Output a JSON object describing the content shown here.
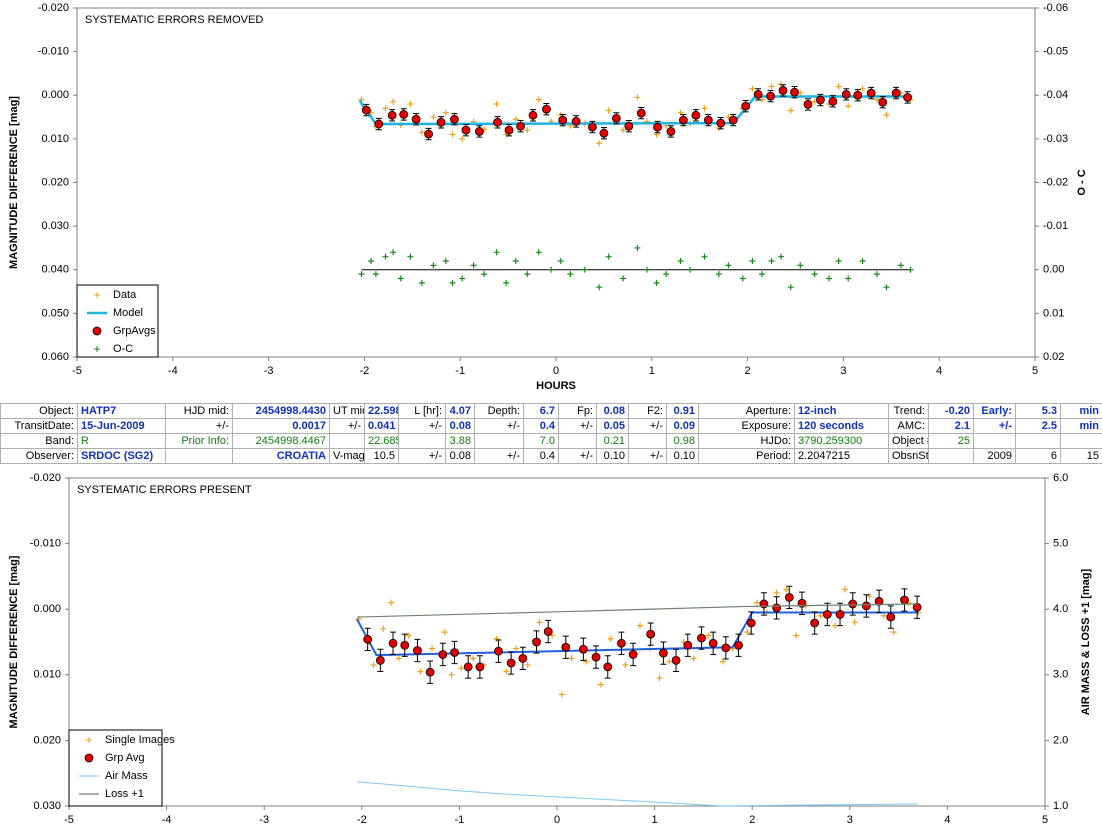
{
  "chart_data": [
    {
      "type": "line",
      "title": "SYSTEMATIC ERRORS REMOVED",
      "x_label": "HOURS",
      "y_label": "MAGNITUDE DIFFERENCE [mag]",
      "y2_label": "O - C",
      "xlim": [
        -5,
        5
      ],
      "xticks": [
        -5,
        -4,
        -3,
        -2,
        -1,
        0,
        1,
        2,
        3,
        4,
        5
      ],
      "ylim": [
        -0.02,
        0.06
      ],
      "y_inverted": true,
      "yticks": [
        {
          "value": -0.02,
          "label": "-0.020"
        },
        {
          "value": -0.01,
          "label": "-0.010"
        },
        {
          "value": 0,
          "label": "0.000"
        },
        {
          "value": 0.01,
          "label": "0.010"
        },
        {
          "value": 0.02,
          "label": "0.020"
        },
        {
          "value": 0.03,
          "label": "0.030"
        },
        {
          "value": 0.04,
          "label": "0.040"
        },
        {
          "value": 0.05,
          "label": "0.050"
        },
        {
          "value": 0.06,
          "label": "0.060"
        }
      ],
      "y2lim": [
        -0.06,
        0.02
      ],
      "y2_inverted": true,
      "y2ticks": [
        {
          "value": -0.06,
          "label": "-0.06"
        },
        {
          "value": -0.05,
          "label": "-0.05"
        },
        {
          "value": -0.04,
          "label": "-0.04"
        },
        {
          "value": -0.03,
          "label": "-0.03"
        },
        {
          "value": -0.02,
          "label": "-0.02"
        },
        {
          "value": -0.01,
          "label": "-0.01"
        },
        {
          "value": 0,
          "label": "0.00"
        },
        {
          "value": 0.01,
          "label": "0.01"
        },
        {
          "value": 0.02,
          "label": "0.02"
        }
      ],
      "legend": "lower left",
      "series": [
        {
          "name": "Data",
          "color": "#f0a020",
          "marker": "plus",
          "x": [
            -2.03,
            -1.93,
            -1.88,
            -1.78,
            -1.7,
            -1.62,
            -1.52,
            -1.4,
            -1.28,
            -1.15,
            -1.08,
            -0.98,
            -0.86,
            -0.75,
            -0.62,
            -0.52,
            -0.42,
            -0.3,
            -0.18,
            -0.05,
            0.05,
            0.15,
            0.3,
            0.45,
            0.55,
            0.7,
            0.85,
            0.95,
            1.05,
            1.15,
            1.3,
            1.4,
            1.55,
            1.7,
            1.8,
            1.95,
            2.05,
            2.15,
            2.25,
            2.35,
            2.45,
            2.55,
            2.7,
            2.85,
            2.95,
            3.05,
            3.2,
            3.35,
            3.45,
            3.6,
            3.7
          ],
          "values": [
            0.001,
            0.004,
            0.0072,
            0.003,
            0.0015,
            0.0068,
            0.002,
            0.0085,
            0.005,
            0.004,
            0.009,
            0.01,
            0.006,
            0.0078,
            0.002,
            0.009,
            0.0055,
            0.008,
            0.001,
            0.006,
            0.0045,
            0.007,
            0.0065,
            0.011,
            0.0035,
            0.008,
            0.0005,
            0.006,
            0.009,
            0.007,
            0.004,
            0.0065,
            0.003,
            0.0075,
            0.005,
            0.003,
            -0.0015,
            0.001,
            -0.002,
            -0.0025,
            0.0035,
            -0.0005,
            0.0015,
            0.002,
            -0.002,
            0.0025,
            -0.0015,
            0.001,
            0.0045,
            -0.0005,
            0.001
          ]
        },
        {
          "name": "Model",
          "color": "#1fb4e0",
          "marker": "line",
          "width": 2.5,
          "x": [
            -2.05,
            -1.88,
            1.85,
            2.08,
            3.72
          ],
          "values": [
            0.0012,
            0.0066,
            0.0064,
            0.0003,
            0.0003
          ]
        },
        {
          "name": "GrpAvgs",
          "color": "#e00000",
          "marker": "circle",
          "error": 0.0013,
          "x": [
            -1.98,
            -1.85,
            -1.71,
            -1.59,
            -1.46,
            -1.33,
            -1.2,
            -1.06,
            -0.94,
            -0.8,
            -0.61,
            -0.49,
            -0.37,
            -0.24,
            -0.1,
            0.07,
            0.21,
            0.38,
            0.5,
            0.63,
            0.76,
            0.89,
            1.06,
            1.2,
            1.33,
            1.46,
            1.59,
            1.72,
            1.85,
            1.98,
            2.11,
            2.24,
            2.37,
            2.49,
            2.63,
            2.76,
            2.89,
            3.03,
            3.15,
            3.29,
            3.41,
            3.55,
            3.67
          ],
          "values": [
            0.0034,
            0.0066,
            0.0046,
            0.0044,
            0.0055,
            0.0089,
            0.0062,
            0.0055,
            0.008,
            0.0083,
            0.0062,
            0.008,
            0.0071,
            0.0046,
            0.0032,
            0.0057,
            0.006,
            0.0073,
            0.0087,
            0.0053,
            0.0071,
            0.0041,
            0.0073,
            0.0083,
            0.0057,
            0.0046,
            0.0057,
            0.0064,
            0.0057,
            0.0025,
            -0.0002,
            0.0002,
            -0.0011,
            -0.0007,
            0.0021,
            0.0011,
            0.0014,
            -0.0002,
            0.0,
            -0.0005,
            0.0016,
            -0.0005,
            0.0005
          ]
        },
        {
          "name": "O-C",
          "color": "#1a8a1a",
          "marker": "plus",
          "axis": "y2",
          "zero_line": true,
          "x": [
            -2.03,
            -1.93,
            -1.88,
            -1.78,
            -1.7,
            -1.62,
            -1.52,
            -1.4,
            -1.28,
            -1.15,
            -1.08,
            -0.98,
            -0.86,
            -0.75,
            -0.62,
            -0.52,
            -0.42,
            -0.3,
            -0.18,
            -0.05,
            0.05,
            0.15,
            0.3,
            0.45,
            0.55,
            0.7,
            0.85,
            0.95,
            1.05,
            1.15,
            1.3,
            1.4,
            1.55,
            1.7,
            1.8,
            1.95,
            2.05,
            2.15,
            2.25,
            2.35,
            2.45,
            2.55,
            2.7,
            2.85,
            2.95,
            3.05,
            3.2,
            3.35,
            3.45,
            3.6,
            3.7
          ],
          "values": [
            0.001,
            -0.002,
            0.001,
            -0.003,
            -0.004,
            0.002,
            -0.003,
            0.003,
            -0.001,
            -0.002,
            0.003,
            0.002,
            -0.001,
            0.001,
            -0.004,
            0.003,
            -0.002,
            0.001,
            -0.004,
            0.0,
            -0.002,
            0.001,
            0.0,
            0.004,
            -0.003,
            0.002,
            -0.005,
            0.0,
            0.003,
            0.001,
            -0.002,
            0.0,
            -0.003,
            0.001,
            -0.001,
            0.002,
            -0.002,
            0.001,
            -0.002,
            -0.003,
            0.004,
            -0.001,
            0.001,
            0.002,
            -0.002,
            0.002,
            -0.002,
            0.001,
            0.004,
            -0.001,
            0.0
          ]
        }
      ]
    },
    {
      "type": "line",
      "title": "SYSTEMATIC ERRORS PRESENT",
      "y_label": "MAGNITUDE DIFFERENCE [mag]",
      "y2_label": "AIR MASS & LOSS +1 [mag]",
      "xlim": [
        -5,
        5
      ],
      "xticks": [
        -5,
        -4,
        -3,
        -2,
        -1,
        0,
        1,
        2,
        3,
        4,
        5
      ],
      "ylim": [
        -0.02,
        0.03
      ],
      "y_inverted": true,
      "yticks": [
        {
          "value": -0.02,
          "label": "-0.020"
        },
        {
          "value": -0.01,
          "label": "-0.010"
        },
        {
          "value": 0,
          "label": "0.000"
        },
        {
          "value": 0.01,
          "label": "0.010"
        },
        {
          "value": 0.02,
          "label": "0.020"
        },
        {
          "value": 0.03,
          "label": "0.030"
        }
      ],
      "y2lim": [
        1,
        6
      ],
      "y2_inverted": false,
      "y2ticks": [
        {
          "value": 1,
          "label": "1.0"
        },
        {
          "value": 2,
          "label": "2.0"
        },
        {
          "value": 3,
          "label": "3.0"
        },
        {
          "value": 4,
          "label": "4.0"
        },
        {
          "value": 5,
          "label": "5.0"
        },
        {
          "value": 6,
          "label": "6.0"
        }
      ],
      "legend": "lower left",
      "series": [
        {
          "name": "Single Images",
          "color": "#f0a020",
          "marker": "plus",
          "x": [
            -2.03,
            -1.93,
            -1.88,
            -1.78,
            -1.7,
            -1.62,
            -1.52,
            -1.4,
            -1.28,
            -1.15,
            -1.08,
            -0.98,
            -0.86,
            -0.75,
            -0.62,
            -0.52,
            -0.42,
            -0.3,
            -0.18,
            -0.05,
            0.05,
            0.15,
            0.3,
            0.45,
            0.55,
            0.7,
            0.85,
            0.95,
            1.05,
            1.15,
            1.3,
            1.4,
            1.55,
            1.7,
            1.8,
            1.95,
            2.05,
            2.15,
            2.25,
            2.35,
            2.45,
            2.55,
            2.7,
            2.85,
            2.95,
            3.05,
            3.2,
            3.35,
            3.45,
            3.6,
            3.7
          ],
          "values": [
            0.0015,
            0.005,
            0.0085,
            0.003,
            -0.001,
            0.0075,
            0.004,
            0.0095,
            0.006,
            0.0035,
            0.01,
            0.009,
            0.0075,
            0.0085,
            0.0045,
            0.0095,
            0.006,
            0.0085,
            0.002,
            0.004,
            0.013,
            0.0075,
            0.008,
            0.0115,
            0.0045,
            0.0085,
            0.0025,
            0.006,
            0.0105,
            0.008,
            0.005,
            0.0075,
            0.004,
            0.008,
            0.006,
            0.0035,
            -0.001,
            0.0005,
            -0.0025,
            -0.003,
            0.004,
            -0.0005,
            0.001,
            0.0025,
            -0.003,
            0.002,
            -0.002,
            0.001,
            0.0035,
            -0.001,
            0.0005
          ]
        },
        {
          "color": "#2060e0",
          "marker": "line",
          "width": 2,
          "x": [
            -2.05,
            -1.85,
            1.8,
            2.0,
            3.7
          ],
          "values": [
            0.0015,
            0.007,
            0.0058,
            0.0005,
            0.0005
          ]
        },
        {
          "name": "Grp Avg",
          "color": "#e00000",
          "marker": "circle",
          "error": 0.0017,
          "x": [
            -1.94,
            -1.81,
            -1.68,
            -1.56,
            -1.43,
            -1.3,
            -1.17,
            -1.05,
            -0.91,
            -0.79,
            -0.6,
            -0.47,
            -0.35,
            -0.21,
            -0.09,
            0.09,
            0.27,
            0.4,
            0.52,
            0.66,
            0.78,
            0.96,
            1.09,
            1.22,
            1.34,
            1.48,
            1.6,
            1.73,
            1.86,
            1.99,
            2.12,
            2.25,
            2.38,
            2.51,
            2.64,
            2.77,
            2.9,
            3.03,
            3.17,
            3.3,
            3.42,
            3.56,
            3.69
          ],
          "values": [
            0.0046,
            0.0078,
            0.0052,
            0.0055,
            0.0063,
            0.0096,
            0.0069,
            0.0066,
            0.0088,
            0.0088,
            0.0064,
            0.0082,
            0.0075,
            0.005,
            0.0034,
            0.0058,
            0.0061,
            0.0073,
            0.0088,
            0.0052,
            0.0069,
            0.0038,
            0.0067,
            0.0078,
            0.0055,
            0.0044,
            0.0052,
            0.0059,
            0.0055,
            0.0021,
            -0.0008,
            -0.0002,
            -0.0018,
            -0.0009,
            0.0021,
            0.0008,
            0.0008,
            -0.0008,
            -0.0005,
            -0.0012,
            0.0012,
            -0.0014,
            -0.0003
          ]
        },
        {
          "name": "Air Mass",
          "color": "#7ec8f0",
          "marker": "line",
          "width": 1,
          "axis": "y2",
          "x": [
            -2.05,
            -1.5,
            -1,
            -0.5,
            0,
            0.5,
            1,
            1.7,
            2.9,
            3.7
          ],
          "values": [
            1.37,
            1.3,
            1.23,
            1.18,
            1.14,
            1.1,
            1.06,
            1.0,
            1.02,
            1.03
          ]
        },
        {
          "name": "Loss +1",
          "color": "#708070",
          "marker": "line",
          "width": 1.2,
          "axis": "y2",
          "x": [
            -2.05,
            0,
            1.9,
            3.7
          ],
          "values": [
            3.88,
            3.96,
            4.04,
            4.08
          ]
        }
      ]
    }
  ],
  "table": {
    "rows": [
      [
        "Object:",
        "HATP7",
        "HJD mid:",
        "2454998.4430",
        "UT mid:",
        "22.598",
        "L [hr]:",
        "4.07",
        "Depth:",
        "6.7",
        "Fp:",
        "0.08",
        "F2:",
        "0.91",
        "Aperture:",
        "12-inch",
        "Trend:",
        "-0.20",
        "Early:",
        "5.3",
        "min"
      ],
      [
        "TransitDate:",
        "15-Jun-2009",
        "+/-",
        "0.0017",
        "+/-",
        "0.041",
        "+/-",
        "0.08",
        "+/-",
        "0.4",
        "+/-",
        "0.05",
        "+/-",
        "0.09",
        "Exposure:",
        "120 seconds",
        "AMC:",
        "2.1",
        "+/-",
        "2.5",
        "min"
      ],
      [
        "Band:",
        "R",
        "Prior Info:",
        "2454998.4467",
        null,
        "22.685",
        null,
        "3.88",
        null,
        "7.0",
        null,
        "0.21",
        null,
        "0.98",
        "HJDo:",
        "3790.259300",
        "Object #:",
        "25",
        null,
        null,
        null
      ],
      [
        "Observer:",
        "SRDOC (SG2)",
        null,
        "CROATIA",
        "V-mag:",
        "10.5",
        "+/-",
        "0.08",
        "+/-",
        "0.4",
        "+/-",
        "0.10",
        "+/-",
        "0.10",
        "Period:",
        "2.2047215",
        "ObsnStartDate:",
        null,
        "2009",
        "6",
        "15"
      ]
    ]
  }
}
